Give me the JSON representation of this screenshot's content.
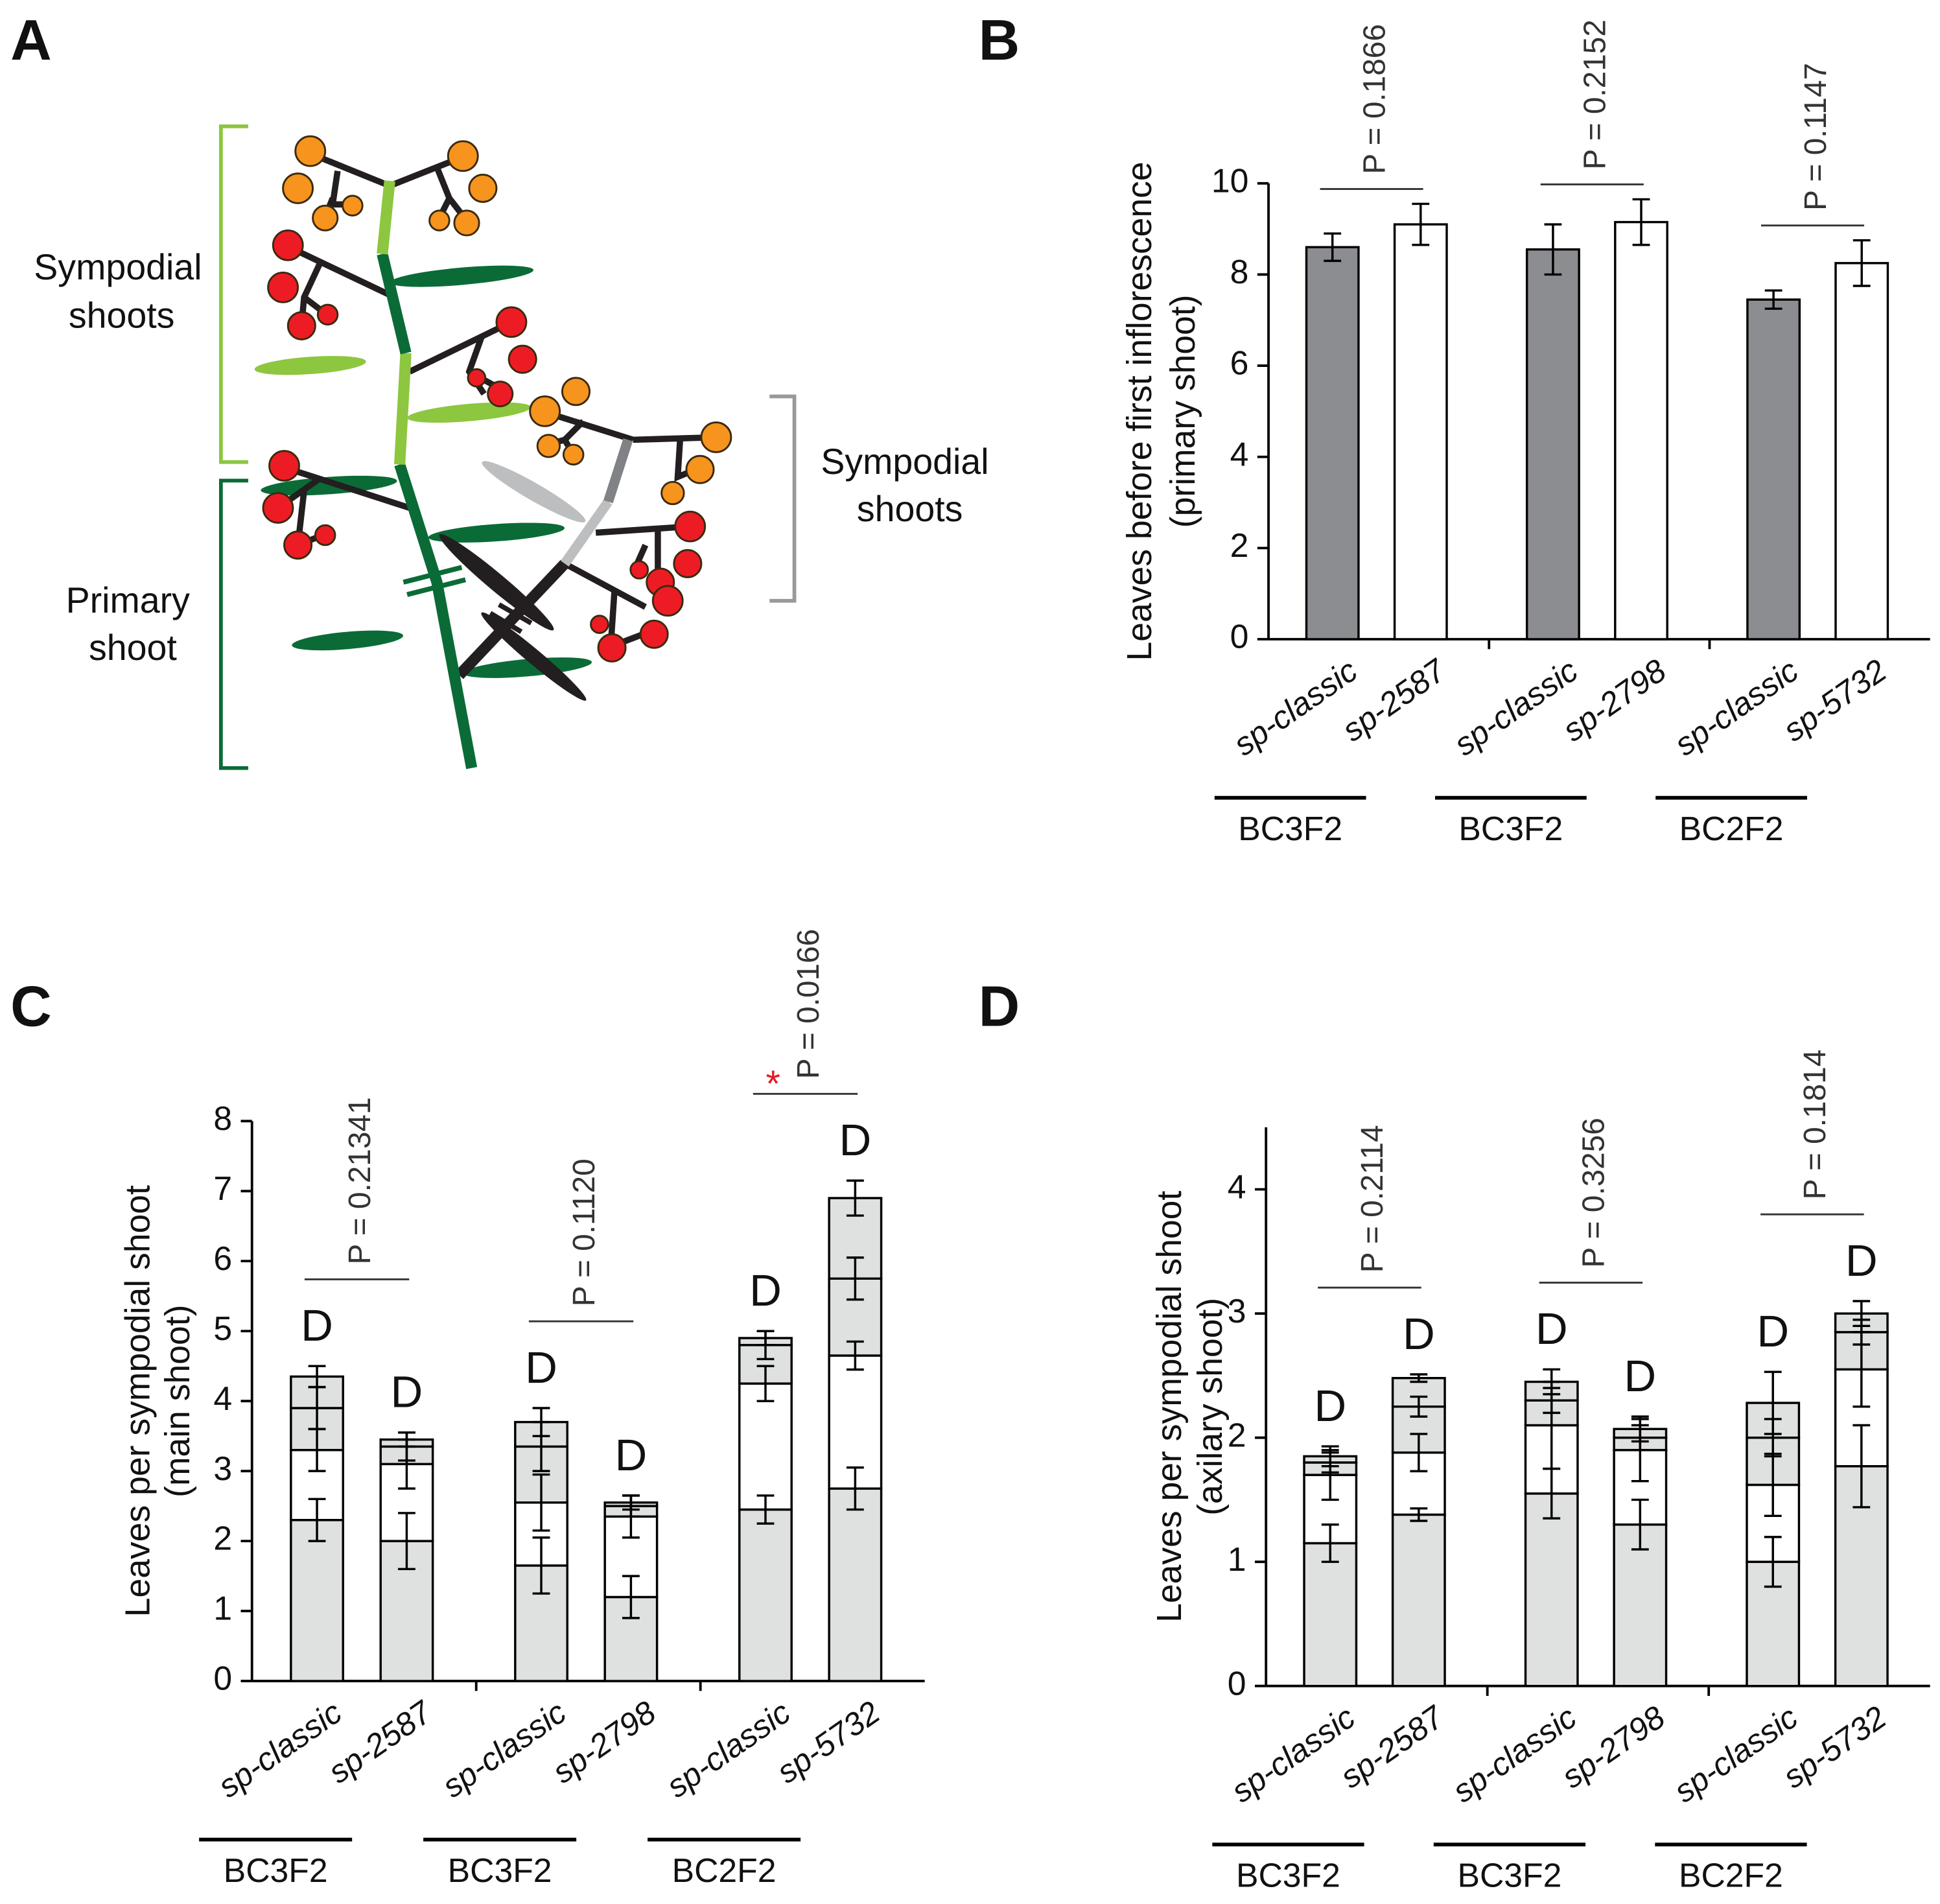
{
  "panel_a": {
    "panel": "A",
    "labels": [
      [
        "Sympodial",
        "shoots"
      ],
      [
        "Primary",
        "shoot"
      ],
      [
        "Sympodial",
        "shoots"
      ]
    ]
  },
  "chart_data": [
    {
      "type": "bar",
      "panel": "B",
      "ylabel": [
        "Leaves before first inflorescence",
        "(primary shoot)"
      ],
      "categories": [
        "sp-classic",
        "sp-2587",
        "sp-classic",
        "sp-2798",
        "sp-classic",
        "sp-5732"
      ],
      "groups": [
        "BC3F2",
        "BC3F2",
        "BC2F2"
      ],
      "values": [
        8.6,
        9.1,
        8.55,
        9.15,
        7.45,
        8.25
      ],
      "errors": [
        0.3,
        0.45,
        0.55,
        0.5,
        0.2,
        0.5
      ],
      "colors": [
        "#8c8d90",
        "#ffffff",
        "#8c8d90",
        "#ffffff",
        "#8c8d90",
        "#ffffff"
      ],
      "ylim": [
        0,
        10
      ],
      "yticks": [
        0,
        2,
        4,
        6,
        8,
        10
      ],
      "pvalues": [
        "P = 0.1866",
        "P = 0.2152",
        "P = 0.1147"
      ]
    },
    {
      "type": "stacked_bar",
      "panel": "C",
      "ylabel": [
        "Leaves per sympodial shoot",
        "(main shoot)"
      ],
      "categories": [
        "sp-classic",
        "sp-2587",
        "sp-classic",
        "sp-2798",
        "sp-classic",
        "sp-5732"
      ],
      "groups": [
        "BC3F2",
        "BC3F2",
        "BC2F2"
      ],
      "series": [
        {
          "color": "#dfe0e0",
          "values": [
            2.3,
            2.0,
            1.65,
            1.2,
            2.45,
            2.75
          ],
          "errors": [
            0.3,
            0.4,
            0.4,
            0.3,
            0.2,
            0.3
          ]
        },
        {
          "color": "#ffffff",
          "values": [
            1.0,
            1.1,
            0.9,
            1.15,
            1.8,
            1.9
          ],
          "errors": [
            0.3,
            0.35,
            0.4,
            0.3,
            0.25,
            0.2
          ]
        },
        {
          "color": "#dfe0e0",
          "values": [
            0.6,
            0.25,
            0.8,
            0.15,
            0.55,
            1.1
          ],
          "errors": [
            0.3,
            0.2,
            0.35,
            0.15,
            0.2,
            0.3
          ]
        },
        {
          "color": "#dfe0e0",
          "values": [
            0.45,
            0.1,
            0.35,
            0.05,
            0.1,
            1.15
          ],
          "errors": [
            0.15,
            0.1,
            0.2,
            0.1,
            0.1,
            0.25
          ]
        }
      ],
      "bar_labels": [
        "D",
        "D",
        "D",
        "D",
        "D",
        "D"
      ],
      "ylim": [
        0,
        8
      ],
      "yticks": [
        0,
        1,
        2,
        3,
        4,
        5,
        6,
        7,
        8
      ],
      "pvalues": [
        "P = 0.21341",
        "P = 0.1120",
        "P = 0.0166"
      ],
      "significance": [
        null,
        null,
        "*"
      ]
    },
    {
      "type": "stacked_bar",
      "panel": "D",
      "ylabel": [
        "Leaves per sympodial shoot",
        "(axilary shoot)"
      ],
      "categories": [
        "sp-classic",
        "sp-2587",
        "sp-classic",
        "sp-2798",
        "sp-classic",
        "sp-5732"
      ],
      "groups": [
        "BC3F2",
        "BC3F2",
        "BC2F2"
      ],
      "series": [
        {
          "color": "#dfe0e0",
          "values": [
            1.15,
            1.38,
            1.55,
            1.3,
            1.0,
            1.77
          ],
          "errors": [
            0.15,
            0.05,
            0.2,
            0.2,
            0.2,
            0.33
          ]
        },
        {
          "color": "#ffffff",
          "values": [
            0.55,
            0.5,
            0.55,
            0.6,
            0.62,
            0.78
          ],
          "errors": [
            0.2,
            0.15,
            0.35,
            0.25,
            0.25,
            0.3
          ]
        },
        {
          "color": "#dfe0e0",
          "values": [
            0.1,
            0.37,
            0.2,
            0.1,
            0.38,
            0.3
          ],
          "errors": [
            0.08,
            0.08,
            0.1,
            0.1,
            0.15,
            0.1
          ]
        },
        {
          "color": "#dfe0e0",
          "values": [
            0.05,
            0.23,
            0.15,
            0.07,
            0.28,
            0.15
          ],
          "errors": [
            0.08,
            0.03,
            0.1,
            0.1,
            0.25,
            0.1
          ]
        }
      ],
      "bar_labels": [
        "D",
        "D",
        "D",
        "D",
        "D",
        "D"
      ],
      "ylim": [
        0,
        4.5
      ],
      "yticks": [
        0,
        1,
        2,
        3,
        4
      ],
      "pvalues": [
        "P = 0.2114",
        "P = 0.3256",
        "P = 0.1814"
      ]
    }
  ]
}
